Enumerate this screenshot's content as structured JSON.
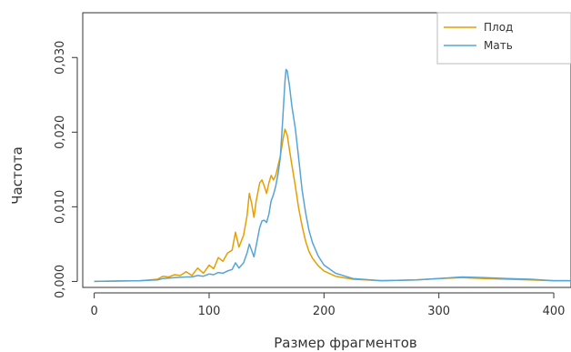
{
  "chart_data": {
    "type": "line",
    "title": "",
    "xlabel": "Размер фрагментов",
    "ylabel": "Частота",
    "xlim": [
      -10,
      415
    ],
    "ylim": [
      -0.0008,
      0.036
    ],
    "xticks": [
      0,
      100,
      200,
      300,
      400
    ],
    "xtick_labels": [
      "0",
      "100",
      "200",
      "300",
      "400"
    ],
    "yticks": [
      0.0,
      0.01,
      0.02,
      0.03
    ],
    "ytick_labels": [
      "0,000",
      "0,010",
      "0,020",
      "0,030"
    ],
    "grid": false,
    "legend": {
      "position": "top-right"
    },
    "series": [
      {
        "name": "Плод",
        "color": "#E69F00",
        "points": [
          [
            0,
            0.0
          ],
          [
            40,
            0.0001
          ],
          [
            55,
            0.0003
          ],
          [
            60,
            0.0007
          ],
          [
            65,
            0.0006
          ],
          [
            70,
            0.0009
          ],
          [
            75,
            0.0008
          ],
          [
            80,
            0.0013
          ],
          [
            85,
            0.0008
          ],
          [
            90,
            0.0018
          ],
          [
            95,
            0.0011
          ],
          [
            100,
            0.0022
          ],
          [
            104,
            0.0017
          ],
          [
            108,
            0.0032
          ],
          [
            112,
            0.0027
          ],
          [
            116,
            0.0038
          ],
          [
            120,
            0.0042
          ],
          [
            123,
            0.0066
          ],
          [
            126,
            0.0046
          ],
          [
            130,
            0.0062
          ],
          [
            133,
            0.0088
          ],
          [
            135,
            0.0118
          ],
          [
            137,
            0.0105
          ],
          [
            139,
            0.0086
          ],
          [
            141,
            0.0108
          ],
          [
            144,
            0.0132
          ],
          [
            146,
            0.0136
          ],
          [
            148,
            0.0128
          ],
          [
            150,
            0.0118
          ],
          [
            152,
            0.0132
          ],
          [
            154,
            0.0142
          ],
          [
            156,
            0.0136
          ],
          [
            158,
            0.0142
          ],
          [
            160,
            0.0155
          ],
          [
            162,
            0.0168
          ],
          [
            164,
            0.0188
          ],
          [
            166,
            0.0204
          ],
          [
            168,
            0.0196
          ],
          [
            170,
            0.0176
          ],
          [
            172,
            0.0156
          ],
          [
            175,
            0.0128
          ],
          [
            178,
            0.0098
          ],
          [
            181,
            0.0074
          ],
          [
            184,
            0.0054
          ],
          [
            187,
            0.004
          ],
          [
            190,
            0.0031
          ],
          [
            195,
            0.0021
          ],
          [
            200,
            0.0014
          ],
          [
            210,
            0.0007
          ],
          [
            225,
            0.0003
          ],
          [
            250,
            0.0001
          ],
          [
            280,
            0.0002
          ],
          [
            300,
            0.0004
          ],
          [
            320,
            0.0005
          ],
          [
            340,
            0.0004
          ],
          [
            360,
            0.0003
          ],
          [
            380,
            0.0002
          ],
          [
            400,
            0.0001
          ],
          [
            415,
            0.0001
          ]
        ]
      },
      {
        "name": "Мать",
        "color": "#56A5D6",
        "points": [
          [
            0,
            0.0
          ],
          [
            40,
            0.0001
          ],
          [
            55,
            0.0002
          ],
          [
            60,
            0.0004
          ],
          [
            70,
            0.0005
          ],
          [
            80,
            0.0006
          ],
          [
            85,
            0.0006
          ],
          [
            90,
            0.0008
          ],
          [
            95,
            0.0007
          ],
          [
            100,
            0.001
          ],
          [
            104,
            0.0009
          ],
          [
            108,
            0.0012
          ],
          [
            112,
            0.0011
          ],
          [
            116,
            0.0014
          ],
          [
            120,
            0.0016
          ],
          [
            123,
            0.0025
          ],
          [
            126,
            0.0018
          ],
          [
            130,
            0.0025
          ],
          [
            133,
            0.0038
          ],
          [
            135,
            0.005
          ],
          [
            137,
            0.0042
          ],
          [
            139,
            0.0033
          ],
          [
            141,
            0.0048
          ],
          [
            144,
            0.0072
          ],
          [
            146,
            0.0081
          ],
          [
            148,
            0.0082
          ],
          [
            150,
            0.0079
          ],
          [
            152,
            0.009
          ],
          [
            154,
            0.0108
          ],
          [
            156,
            0.0116
          ],
          [
            158,
            0.0128
          ],
          [
            160,
            0.0144
          ],
          [
            162,
            0.0166
          ],
          [
            164,
            0.0216
          ],
          [
            166,
            0.0268
          ],
          [
            167,
            0.0284
          ],
          [
            168,
            0.0282
          ],
          [
            170,
            0.0262
          ],
          [
            172,
            0.0235
          ],
          [
            175,
            0.0205
          ],
          [
            178,
            0.0165
          ],
          [
            181,
            0.0122
          ],
          [
            184,
            0.0092
          ],
          [
            187,
            0.0068
          ],
          [
            190,
            0.0052
          ],
          [
            195,
            0.0034
          ],
          [
            200,
            0.0022
          ],
          [
            210,
            0.0011
          ],
          [
            225,
            0.0004
          ],
          [
            250,
            0.0001
          ],
          [
            280,
            0.0002
          ],
          [
            300,
            0.0004
          ],
          [
            320,
            0.0006
          ],
          [
            340,
            0.0005
          ],
          [
            360,
            0.0004
          ],
          [
            380,
            0.0003
          ],
          [
            400,
            0.0001
          ],
          [
            415,
            0.0001
          ]
        ]
      }
    ]
  }
}
